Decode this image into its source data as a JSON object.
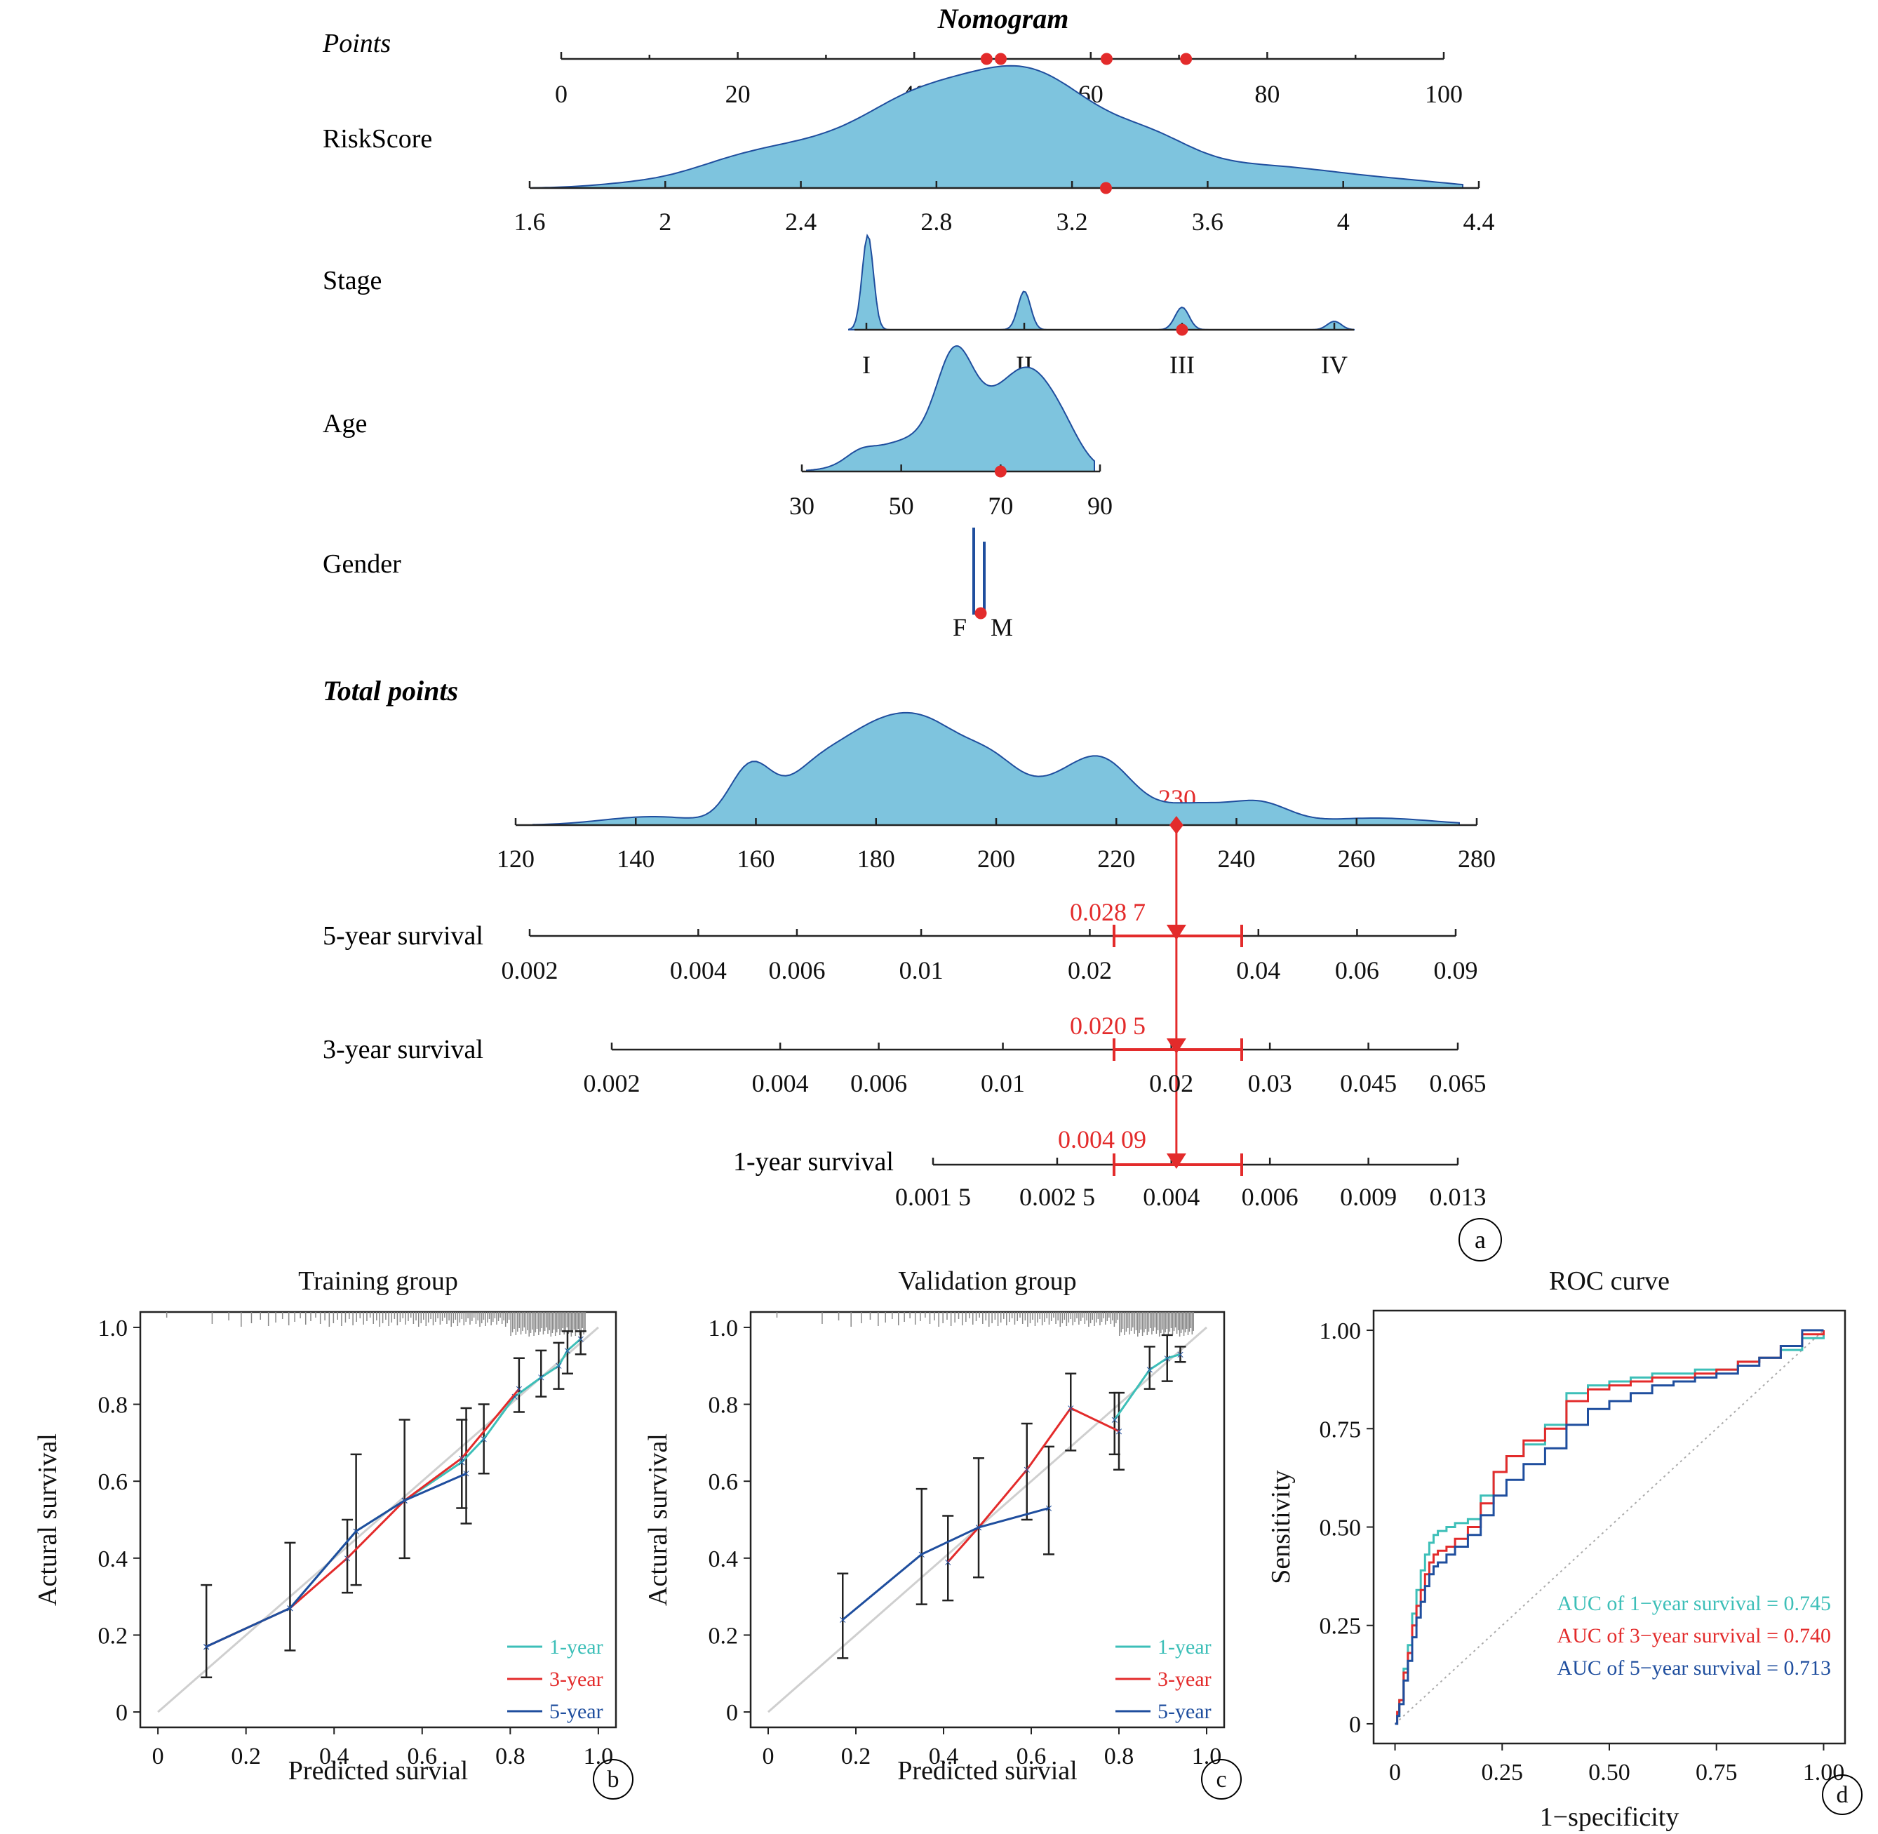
{
  "nomogram": {
    "title": "Nomogram",
    "points_label": "Points",
    "points_ticks": [
      "0",
      "20",
      "40",
      "60",
      "80",
      "100"
    ],
    "points_markers": [
      48.2,
      49.8,
      61.8,
      70.8
    ],
    "variables": [
      {
        "label": "RiskScore",
        "ticks": [
          "1.6",
          "2",
          "2.4",
          "2.8",
          "3.2",
          "3.6",
          "4",
          "4.4"
        ],
        "selected": 3.3
      },
      {
        "label": "Stage",
        "ticks": [
          "I",
          "II",
          "III",
          "IV"
        ],
        "selected": "III"
      },
      {
        "label": "Age",
        "ticks": [
          "30",
          "50",
          "70",
          "90"
        ],
        "selected": 70
      },
      {
        "label": "Gender",
        "ticks": [
          "F",
          "M"
        ],
        "selected": "M"
      }
    ],
    "total_points_label": "Total points",
    "total_ticks": [
      "120",
      "140",
      "160",
      "180",
      "200",
      "220",
      "240",
      "260",
      "280"
    ],
    "total_value": 230,
    "total_value_label": "230",
    "survival_axes": [
      {
        "label": "5-year survival",
        "ticks": [
          "0.002",
          "0.004",
          "0.006",
          "0.01",
          "0.02",
          "0.04",
          "0.06",
          "0.09"
        ],
        "value_label": "0.028 7"
      },
      {
        "label": "3-year survival",
        "ticks": [
          "0.002",
          "0.004",
          "0.006",
          "0.01",
          "0.02",
          "0.03",
          "0.045",
          "0.065"
        ],
        "value_label": "0.020 5"
      },
      {
        "label": "1-year survival",
        "ticks": [
          "0.001 5",
          "0.002 5",
          "0.004",
          "0.006",
          "0.009",
          "0.013"
        ],
        "value_label": "0.004 09"
      }
    ],
    "panel_label": "a"
  },
  "chart_data": [
    {
      "type": "line",
      "title": "Training group",
      "xlabel": "Predicted survial",
      "ylabel": "Actural survival",
      "xlim": [
        0,
        1
      ],
      "ylim": [
        0,
        1
      ],
      "xticks": [
        "0",
        "0.2",
        "0.4",
        "0.6",
        "0.8",
        "1.0"
      ],
      "yticks": [
        "0",
        "0.2",
        "0.4",
        "0.6",
        "0.8",
        "1.0"
      ],
      "series": [
        {
          "name": "1-year",
          "color": "#3dbfb8",
          "x": [
            0.11,
            0.3,
            0.45,
            0.56,
            0.69,
            0.74,
            0.81,
            0.87,
            0.91,
            0.93,
            0.96
          ],
          "y": [
            0.17,
            0.27,
            0.47,
            0.55,
            0.65,
            0.71,
            0.82,
            0.87,
            0.9,
            0.94,
            0.97
          ]
        },
        {
          "name": "3-year",
          "color": "#e32b2b",
          "x": [
            0.11,
            0.3,
            0.43,
            0.56,
            0.69,
            0.82
          ],
          "y": [
            0.17,
            0.27,
            0.4,
            0.55,
            0.66,
            0.84
          ]
        },
        {
          "name": "5-year",
          "color": "#1f4e9e",
          "x": [
            0.11,
            0.3,
            0.45,
            0.56,
            0.7
          ],
          "y": [
            0.17,
            0.27,
            0.47,
            0.55,
            0.62
          ]
        }
      ],
      "error_bars": [
        {
          "x": 0.11,
          "lo": 0.09,
          "hi": 0.33
        },
        {
          "x": 0.3,
          "lo": 0.16,
          "hi": 0.44
        },
        {
          "x": 0.43,
          "lo": 0.31,
          "hi": 0.5
        },
        {
          "x": 0.45,
          "lo": 0.33,
          "hi": 0.67
        },
        {
          "x": 0.56,
          "lo": 0.4,
          "hi": 0.76
        },
        {
          "x": 0.69,
          "lo": 0.53,
          "hi": 0.76
        },
        {
          "x": 0.7,
          "lo": 0.49,
          "hi": 0.79
        },
        {
          "x": 0.74,
          "lo": 0.62,
          "hi": 0.8
        },
        {
          "x": 0.82,
          "lo": 0.78,
          "hi": 0.92
        },
        {
          "x": 0.87,
          "lo": 0.82,
          "hi": 0.94
        },
        {
          "x": 0.91,
          "lo": 0.84,
          "hi": 0.96
        },
        {
          "x": 0.93,
          "lo": 0.88,
          "hi": 0.99
        },
        {
          "x": 0.96,
          "lo": 0.93,
          "hi": 0.99
        }
      ],
      "legend": [
        "1-year",
        "3-year",
        "5-year"
      ],
      "legend_position": "bottom-right",
      "panel_label": "b"
    },
    {
      "type": "line",
      "title": "Validation group",
      "xlabel": "Predicted survial",
      "ylabel": "Actural survival",
      "xlim": [
        0,
        1
      ],
      "ylim": [
        0,
        1
      ],
      "xticks": [
        "0",
        "0.2",
        "0.4",
        "0.6",
        "0.8",
        "1.0"
      ],
      "yticks": [
        "0",
        "0.2",
        "0.4",
        "0.6",
        "0.8",
        "1.0"
      ],
      "series": [
        {
          "name": "1-year",
          "color": "#3dbfb8",
          "x": [
            0.79,
            0.87,
            0.91,
            0.94
          ],
          "y": [
            0.76,
            0.89,
            0.92,
            0.93
          ]
        },
        {
          "name": "3-year",
          "color": "#e32b2b",
          "x": [
            0.41,
            0.48,
            0.59,
            0.69,
            0.8
          ],
          "y": [
            0.39,
            0.48,
            0.63,
            0.79,
            0.73
          ]
        },
        {
          "name": "5-year",
          "color": "#1f4e9e",
          "x": [
            0.17,
            0.35,
            0.48,
            0.64
          ],
          "y": [
            0.24,
            0.41,
            0.48,
            0.53
          ]
        }
      ],
      "error_bars": [
        {
          "x": 0.17,
          "lo": 0.14,
          "hi": 0.36
        },
        {
          "x": 0.35,
          "lo": 0.28,
          "hi": 0.58
        },
        {
          "x": 0.41,
          "lo": 0.29,
          "hi": 0.51
        },
        {
          "x": 0.48,
          "lo": 0.35,
          "hi": 0.66
        },
        {
          "x": 0.59,
          "lo": 0.5,
          "hi": 0.75
        },
        {
          "x": 0.64,
          "lo": 0.41,
          "hi": 0.69
        },
        {
          "x": 0.69,
          "lo": 0.68,
          "hi": 0.88
        },
        {
          "x": 0.79,
          "lo": 0.67,
          "hi": 0.83
        },
        {
          "x": 0.8,
          "lo": 0.63,
          "hi": 0.83
        },
        {
          "x": 0.87,
          "lo": 0.84,
          "hi": 0.95
        },
        {
          "x": 0.91,
          "lo": 0.86,
          "hi": 0.98
        },
        {
          "x": 0.94,
          "lo": 0.91,
          "hi": 0.95
        }
      ],
      "legend": [
        "1-year",
        "3-year",
        "5-year"
      ],
      "legend_position": "bottom-right",
      "panel_label": "c"
    },
    {
      "type": "line",
      "title": "ROC curve",
      "xlabel": "1−specificity",
      "ylabel": "Sensitivity",
      "xlim": [
        0,
        1
      ],
      "ylim": [
        0,
        1
      ],
      "xticks": [
        "0",
        "0.25",
        "0.50",
        "0.75",
        "1.00"
      ],
      "yticks": [
        "0",
        "0.25",
        "0.50",
        "0.75",
        "1.00"
      ],
      "series": [
        {
          "name": "AUC of 1−year survival = 0.745",
          "color": "#3dbfb8",
          "x": [
            0,
            0.005,
            0.01,
            0.02,
            0.03,
            0.04,
            0.05,
            0.06,
            0.07,
            0.08,
            0.09,
            0.1,
            0.12,
            0.14,
            0.17,
            0.2,
            0.23,
            0.26,
            0.3,
            0.35,
            0.4,
            0.45,
            0.5,
            0.55,
            0.6,
            0.65,
            0.7,
            0.75,
            0.8,
            0.85,
            0.9,
            0.95,
            1.0
          ],
          "y": [
            0,
            0.02,
            0.06,
            0.14,
            0.2,
            0.28,
            0.34,
            0.39,
            0.43,
            0.46,
            0.48,
            0.49,
            0.5,
            0.51,
            0.52,
            0.58,
            0.64,
            0.68,
            0.71,
            0.76,
            0.84,
            0.86,
            0.87,
            0.88,
            0.89,
            0.89,
            0.9,
            0.9,
            0.92,
            0.93,
            0.95,
            0.98,
            1.0
          ]
        },
        {
          "name": "AUC of 3−year survival = 0.740",
          "color": "#e32b2b",
          "x": [
            0,
            0.005,
            0.01,
            0.02,
            0.03,
            0.04,
            0.05,
            0.06,
            0.07,
            0.08,
            0.09,
            0.1,
            0.12,
            0.14,
            0.17,
            0.2,
            0.23,
            0.26,
            0.3,
            0.35,
            0.4,
            0.45,
            0.5,
            0.55,
            0.6,
            0.65,
            0.7,
            0.75,
            0.8,
            0.85,
            0.9,
            0.95,
            1.0
          ],
          "y": [
            0,
            0.03,
            0.06,
            0.13,
            0.18,
            0.25,
            0.3,
            0.34,
            0.38,
            0.41,
            0.43,
            0.44,
            0.45,
            0.47,
            0.5,
            0.56,
            0.64,
            0.68,
            0.72,
            0.75,
            0.82,
            0.85,
            0.86,
            0.87,
            0.88,
            0.88,
            0.89,
            0.9,
            0.92,
            0.93,
            0.96,
            0.99,
            1.0
          ]
        },
        {
          "name": "AUC of 5−year survival = 0.713",
          "color": "#1f4e9e",
          "x": [
            0,
            0.005,
            0.01,
            0.02,
            0.03,
            0.04,
            0.05,
            0.06,
            0.07,
            0.08,
            0.09,
            0.1,
            0.12,
            0.14,
            0.17,
            0.2,
            0.23,
            0.26,
            0.3,
            0.35,
            0.4,
            0.45,
            0.5,
            0.55,
            0.6,
            0.65,
            0.7,
            0.75,
            0.8,
            0.85,
            0.9,
            0.95,
            1.0
          ],
          "y": [
            0,
            0.02,
            0.05,
            0.11,
            0.16,
            0.22,
            0.27,
            0.31,
            0.35,
            0.38,
            0.4,
            0.41,
            0.43,
            0.45,
            0.48,
            0.53,
            0.58,
            0.62,
            0.66,
            0.7,
            0.76,
            0.8,
            0.82,
            0.84,
            0.86,
            0.87,
            0.88,
            0.89,
            0.91,
            0.93,
            0.96,
            1.0,
            1.0
          ]
        }
      ],
      "reference_line": "diagonal",
      "legend_position": "bottom-right",
      "panel_label": "d"
    }
  ]
}
